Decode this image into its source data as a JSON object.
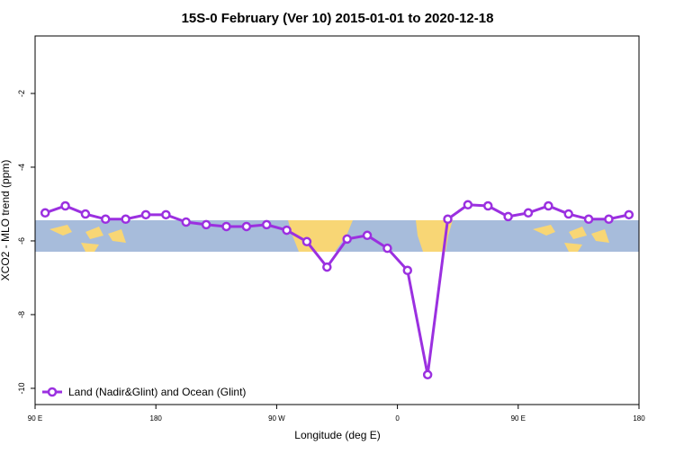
{
  "chart_data": {
    "type": "line",
    "title": "15S-0 February (Ver 10)   2015-01-01 to 2020-12-18",
    "x_label": "Longitude (deg E)",
    "y_label": "XCO2 - MLO trend (ppm)",
    "xlim": [
      90,
      540
    ],
    "ylim": [
      -10.44,
      -0.44
    ],
    "xticks": [
      {
        "value": 90,
        "label": "90 E"
      },
      180,
      {
        "value": 270,
        "label": "90 W"
      },
      {
        "value": 360,
        "label": "0"
      },
      {
        "value": 450,
        "label": "90 E"
      },
      {
        "value": 540,
        "label": "180"
      }
    ],
    "yticks": [
      -10,
      -8,
      -6,
      -4,
      -2
    ],
    "legend": "bottom-left",
    "x": [
      97.5,
      112.5,
      127.5,
      142.5,
      157.5,
      172.5,
      187.5,
      202.5,
      217.5,
      232.5,
      247.5,
      262.5,
      277.5,
      292.5,
      307.5,
      322.5,
      337.5,
      352.5,
      367.5,
      382.5,
      397.5,
      412.5,
      427.5,
      442.5,
      457.5,
      472.5,
      487.5,
      502.5,
      517.5,
      532.5
    ],
    "series": [
      {
        "name": "Land (Nadir&Glint) and Ocean (Glint)",
        "color": "#9b30e0",
        "values": [
          -5.24,
          -5.05,
          -5.27,
          -5.41,
          -5.41,
          -5.29,
          -5.29,
          -5.49,
          -5.56,
          -5.61,
          -5.61,
          -5.56,
          -5.71,
          -6.02,
          -6.71,
          -5.95,
          -5.85,
          -6.2,
          -6.8,
          -9.63,
          -5.41,
          -5.02,
          -5.05,
          -5.34,
          -5.24,
          -5.05,
          -5.27,
          -5.41,
          -5.41,
          -5.29
        ]
      }
    ]
  }
}
